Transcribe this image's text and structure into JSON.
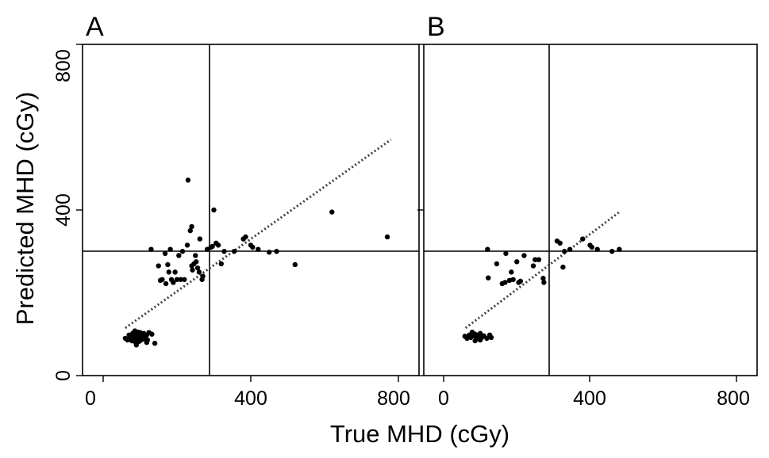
{
  "figure": {
    "xlabel": "True MHD (cGy)",
    "ylabel": "Predicted MHD (cGy)"
  },
  "colors": {
    "background": "#ffffff",
    "axes": "#000000",
    "points": "#000000",
    "reference_lines": "#000000",
    "fit_line": "#404040"
  },
  "chart_data": [
    {
      "type": "scatter",
      "panel_label": "A",
      "xlabel": "True MHD (cGy)",
      "ylabel": "Predicted MHD (cGy)",
      "xlim": [
        0,
        800
      ],
      "ylim": [
        0,
        800
      ],
      "x_ticks": [
        0,
        400,
        800
      ],
      "y_ticks": [
        0,
        400,
        800
      ],
      "x_tick_labels": [
        "0",
        "400",
        "800"
      ],
      "y_tick_labels": [
        "0",
        "400",
        "800"
      ],
      "grid": false,
      "reference_lines": {
        "x": 300,
        "y": 300
      },
      "fit_line": {
        "style": "dotted",
        "x": [
          60,
          780
        ],
        "y": [
          115,
          570
        ]
      },
      "points": [
        [
          60,
          90
        ],
        [
          66,
          86
        ],
        [
          70,
          98
        ],
        [
          74,
          92
        ],
        [
          78,
          84
        ],
        [
          80,
          102
        ],
        [
          82,
          90
        ],
        [
          84,
          96
        ],
        [
          86,
          100
        ],
        [
          88,
          80
        ],
        [
          90,
          94
        ],
        [
          92,
          86
        ],
        [
          94,
          105
        ],
        [
          96,
          90
        ],
        [
          98,
          96
        ],
        [
          100,
          84
        ],
        [
          102,
          100
        ],
        [
          104,
          92
        ],
        [
          106,
          98
        ],
        [
          108,
          88
        ],
        [
          110,
          102
        ],
        [
          112,
          94
        ],
        [
          115,
          90
        ],
        [
          118,
          98
        ],
        [
          120,
          86
        ],
        [
          124,
          104
        ],
        [
          90,
          74
        ],
        [
          96,
          82
        ],
        [
          118,
          80
        ],
        [
          132,
          100
        ],
        [
          140,
          78
        ],
        [
          106,
          96
        ],
        [
          86,
          108
        ],
        [
          100,
          104
        ],
        [
          130,
          305
        ],
        [
          150,
          265
        ],
        [
          155,
          230
        ],
        [
          160,
          232
        ],
        [
          168,
          295
        ],
        [
          170,
          222
        ],
        [
          175,
          268
        ],
        [
          178,
          250
        ],
        [
          182,
          305
        ],
        [
          185,
          232
        ],
        [
          190,
          225
        ],
        [
          195,
          250
        ],
        [
          200,
          232
        ],
        [
          205,
          290
        ],
        [
          210,
          232
        ],
        [
          215,
          300
        ],
        [
          220,
          232
        ],
        [
          228,
          315
        ],
        [
          230,
          472
        ],
        [
          236,
          350
        ],
        [
          240,
          360
        ],
        [
          240,
          265
        ],
        [
          242,
          255
        ],
        [
          246,
          270
        ],
        [
          250,
          290
        ],
        [
          252,
          275
        ],
        [
          256,
          260
        ],
        [
          260,
          250
        ],
        [
          262,
          330
        ],
        [
          268,
          232
        ],
        [
          270,
          240
        ],
        [
          282,
          305
        ],
        [
          292,
          310
        ],
        [
          296,
          312
        ],
        [
          300,
          400
        ],
        [
          306,
          320
        ],
        [
          312,
          315
        ],
        [
          320,
          270
        ],
        [
          328,
          300
        ],
        [
          355,
          300
        ],
        [
          380,
          330
        ],
        [
          386,
          335
        ],
        [
          400,
          315
        ],
        [
          405,
          310
        ],
        [
          420,
          305
        ],
        [
          450,
          298
        ],
        [
          470,
          300
        ],
        [
          520,
          268
        ],
        [
          620,
          395
        ],
        [
          770,
          335
        ]
      ]
    },
    {
      "type": "scatter",
      "panel_label": "B",
      "xlabel": "True MHD (cGy)",
      "ylabel": "",
      "xlim": [
        0,
        800
      ],
      "ylim": [
        0,
        800
      ],
      "x_ticks": [
        0,
        400,
        800
      ],
      "y_ticks": [
        0,
        400,
        800
      ],
      "x_tick_labels": [
        "0",
        "400",
        "800"
      ],
      "y_tick_labels": [
        "",
        "",
        ""
      ],
      "grid": false,
      "reference_lines": {
        "x": 300,
        "y": 300
      },
      "fit_line": {
        "style": "dotted",
        "x": [
          60,
          480
        ],
        "y": [
          115,
          395
        ]
      },
      "points": [
        [
          58,
          95
        ],
        [
          64,
          90
        ],
        [
          70,
          98
        ],
        [
          74,
          92
        ],
        [
          78,
          105
        ],
        [
          82,
          96
        ],
        [
          86,
          100
        ],
        [
          90,
          90
        ],
        [
          94,
          98
        ],
        [
          100,
          102
        ],
        [
          104,
          92
        ],
        [
          110,
          96
        ],
        [
          118,
          90
        ],
        [
          126,
          98
        ],
        [
          130,
          92
        ],
        [
          86,
          84
        ],
        [
          100,
          86
        ],
        [
          120,
          305
        ],
        [
          122,
          236
        ],
        [
          145,
          270
        ],
        [
          160,
          222
        ],
        [
          168,
          225
        ],
        [
          170,
          295
        ],
        [
          180,
          230
        ],
        [
          185,
          250
        ],
        [
          190,
          232
        ],
        [
          200,
          275
        ],
        [
          205,
          225
        ],
        [
          210,
          228
        ],
        [
          220,
          290
        ],
        [
          245,
          265
        ],
        [
          250,
          280
        ],
        [
          260,
          280
        ],
        [
          272,
          235
        ],
        [
          274,
          225
        ],
        [
          310,
          325
        ],
        [
          318,
          320
        ],
        [
          326,
          262
        ],
        [
          330,
          300
        ],
        [
          345,
          305
        ],
        [
          380,
          330
        ],
        [
          400,
          315
        ],
        [
          405,
          310
        ],
        [
          420,
          305
        ],
        [
          460,
          300
        ],
        [
          480,
          305
        ]
      ]
    }
  ]
}
